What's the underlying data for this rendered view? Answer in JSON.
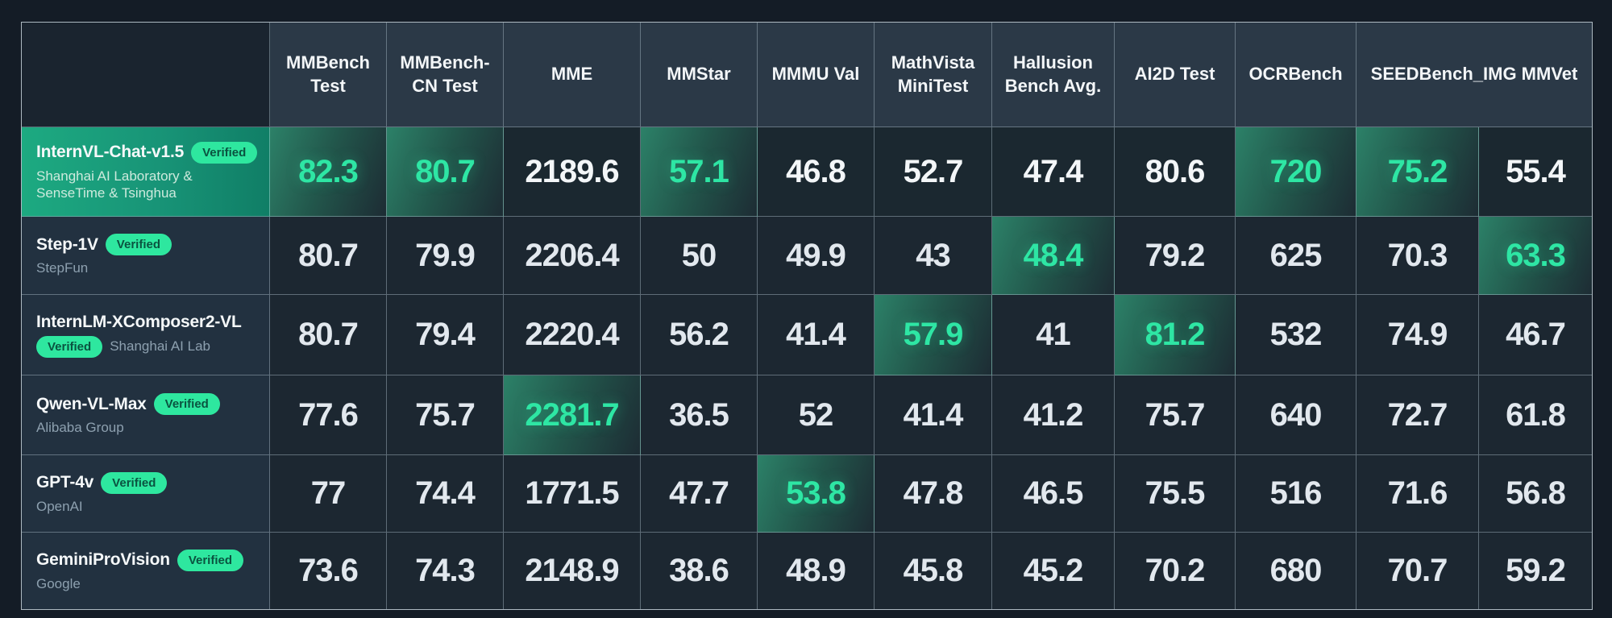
{
  "colors": {
    "page_bg": "#141c26",
    "header_bg": "#2b3947",
    "cell_bg": "#1c2731",
    "accent_green": "#2ee6a4",
    "badge_green": "#2ee79f",
    "row_highlight_green": "#1daa81"
  },
  "table": {
    "columns": [
      {
        "label": "MMBench Test"
      },
      {
        "label": "MMBench-CN Test"
      },
      {
        "label": "MME"
      },
      {
        "label": "MMStar"
      },
      {
        "label": "MMMU Val"
      },
      {
        "label": "MathVista MiniTest"
      },
      {
        "label": "Hallusion Bench Avg."
      },
      {
        "label": "AI2D Test"
      },
      {
        "label": "OCRBench"
      },
      {
        "label": "SEEDBench_IMG MMVet",
        "span": 2
      }
    ],
    "rows": [
      {
        "model": "InternVL-Chat-v1.5",
        "badge": "Verified",
        "badge_line": 1,
        "org": "Shanghai AI Laboratory & SenseTime & Tsinghua",
        "row_highlight": true,
        "values": [
          {
            "v": "82.3",
            "best": true
          },
          {
            "v": "80.7",
            "best": true
          },
          {
            "v": "2189.6"
          },
          {
            "v": "57.1",
            "best": true
          },
          {
            "v": "46.8"
          },
          {
            "v": "52.7"
          },
          {
            "v": "47.4"
          },
          {
            "v": "80.6"
          },
          {
            "v": "720",
            "best": true
          },
          {
            "v": "75.2",
            "best": true
          },
          {
            "v": "55.4"
          }
        ]
      },
      {
        "model": "Step-1V",
        "badge": "Verified",
        "badge_line": 1,
        "org": "StepFun",
        "row_highlight": false,
        "values": [
          {
            "v": "80.7"
          },
          {
            "v": "79.9"
          },
          {
            "v": "2206.4"
          },
          {
            "v": "50"
          },
          {
            "v": "49.9"
          },
          {
            "v": "43"
          },
          {
            "v": "48.4",
            "best": true
          },
          {
            "v": "79.2"
          },
          {
            "v": "625"
          },
          {
            "v": "70.3"
          },
          {
            "v": "63.3",
            "best": true
          }
        ]
      },
      {
        "model": "InternLM-XComposer2-VL",
        "badge": "Verified",
        "badge_line": 2,
        "org": "Shanghai AI Lab",
        "row_highlight": false,
        "values": [
          {
            "v": "80.7"
          },
          {
            "v": "79.4"
          },
          {
            "v": "2220.4"
          },
          {
            "v": "56.2"
          },
          {
            "v": "41.4"
          },
          {
            "v": "57.9",
            "best": true
          },
          {
            "v": "41"
          },
          {
            "v": "81.2",
            "best": true
          },
          {
            "v": "532"
          },
          {
            "v": "74.9"
          },
          {
            "v": "46.7"
          }
        ]
      },
      {
        "model": "Qwen-VL-Max",
        "badge": "Verified",
        "badge_line": 1,
        "org": "Alibaba Group",
        "row_highlight": false,
        "values": [
          {
            "v": "77.6"
          },
          {
            "v": "75.7"
          },
          {
            "v": "2281.7",
            "best": true
          },
          {
            "v": "36.5"
          },
          {
            "v": "52"
          },
          {
            "v": "41.4"
          },
          {
            "v": "41.2"
          },
          {
            "v": "75.7"
          },
          {
            "v": "640"
          },
          {
            "v": "72.7"
          },
          {
            "v": "61.8"
          }
        ]
      },
      {
        "model": "GPT-4v",
        "badge": "Verified",
        "badge_line": 1,
        "org": "OpenAI",
        "row_highlight": false,
        "values": [
          {
            "v": "77"
          },
          {
            "v": "74.4"
          },
          {
            "v": "1771.5"
          },
          {
            "v": "47.7"
          },
          {
            "v": "53.8",
            "best": true
          },
          {
            "v": "47.8"
          },
          {
            "v": "46.5"
          },
          {
            "v": "75.5"
          },
          {
            "v": "516"
          },
          {
            "v": "71.6"
          },
          {
            "v": "56.8"
          }
        ]
      },
      {
        "model": "GeminiProVision",
        "badge": "Verified",
        "badge_line": 1,
        "org": "Google",
        "row_highlight": false,
        "values": [
          {
            "v": "73.6"
          },
          {
            "v": "74.3"
          },
          {
            "v": "2148.9"
          },
          {
            "v": "38.6"
          },
          {
            "v": "48.9"
          },
          {
            "v": "45.8"
          },
          {
            "v": "45.2"
          },
          {
            "v": "70.2"
          },
          {
            "v": "680"
          },
          {
            "v": "70.7"
          },
          {
            "v": "59.2"
          }
        ]
      }
    ]
  },
  "chart_data": {
    "type": "table",
    "columns": [
      "MMBench Test",
      "MMBench-CN Test",
      "MME",
      "MMStar",
      "MMMU Val",
      "MathVista MiniTest",
      "Hallusion Bench Avg.",
      "AI2D Test",
      "OCRBench",
      "SEEDBench_IMG",
      "MMVet"
    ],
    "rows": [
      {
        "model": "InternVL-Chat-v1.5",
        "organization": "Shanghai AI Laboratory & SenseTime & Tsinghua",
        "verified": true,
        "values": [
          82.3,
          80.7,
          2189.6,
          57.1,
          46.8,
          52.7,
          47.4,
          80.6,
          720,
          75.2,
          55.4
        ],
        "best_columns": [
          "MMBench Test",
          "MMBench-CN Test",
          "MMStar",
          "OCRBench",
          "SEEDBench_IMG"
        ]
      },
      {
        "model": "Step-1V",
        "organization": "StepFun",
        "verified": true,
        "values": [
          80.7,
          79.9,
          2206.4,
          50,
          49.9,
          43,
          48.4,
          79.2,
          625,
          70.3,
          63.3
        ],
        "best_columns": [
          "Hallusion Bench Avg.",
          "MMVet"
        ]
      },
      {
        "model": "InternLM-XComposer2-VL",
        "organization": "Shanghai AI Lab",
        "verified": true,
        "values": [
          80.7,
          79.4,
          2220.4,
          56.2,
          41.4,
          57.9,
          41,
          81.2,
          532,
          74.9,
          46.7
        ],
        "best_columns": [
          "MathVista MiniTest",
          "AI2D Test"
        ]
      },
      {
        "model": "Qwen-VL-Max",
        "organization": "Alibaba Group",
        "verified": true,
        "values": [
          77.6,
          75.7,
          2281.7,
          36.5,
          52,
          41.4,
          41.2,
          75.7,
          640,
          72.7,
          61.8
        ],
        "best_columns": [
          "MME"
        ]
      },
      {
        "model": "GPT-4v",
        "organization": "OpenAI",
        "verified": true,
        "values": [
          77,
          74.4,
          1771.5,
          47.7,
          53.8,
          47.8,
          46.5,
          75.5,
          516,
          71.6,
          56.8
        ],
        "best_columns": [
          "MMMU Val"
        ]
      },
      {
        "model": "GeminiProVision",
        "organization": "Google",
        "verified": true,
        "values": [
          73.6,
          74.3,
          2148.9,
          38.6,
          48.9,
          45.8,
          45.2,
          70.2,
          680,
          70.7,
          59.2
        ],
        "best_columns": []
      }
    ],
    "legend": "Green highlighted cells mark the best score in each column; first row is highlighted as the featured model"
  }
}
